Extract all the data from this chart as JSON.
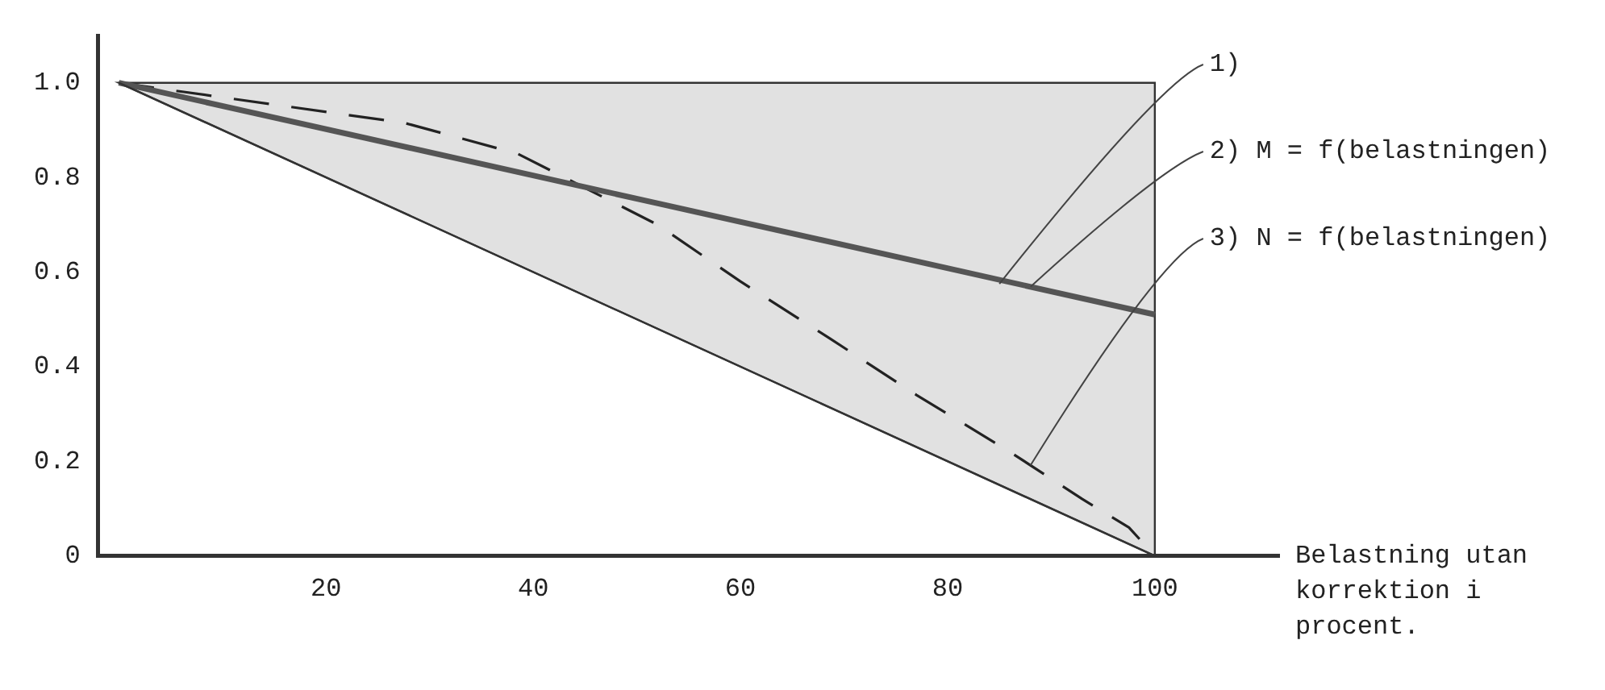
{
  "chart_data": {
    "type": "line",
    "xlabel": "Belastning utan korrektion i procent.",
    "xlim": [
      -2,
      112
    ],
    "xticks": [
      20,
      40,
      60,
      80,
      100
    ],
    "ylim": [
      0,
      1.1
    ],
    "yticks": [
      {
        "value": 0,
        "label": "0"
      },
      {
        "value": 0.2,
        "label": "0.2"
      },
      {
        "value": 0.4,
        "label": "0.4"
      },
      {
        "value": 0.6,
        "label": "0.6"
      },
      {
        "value": 0.8,
        "label": "0.8"
      },
      {
        "value": 1,
        "label": "1.0"
      }
    ],
    "grid": false,
    "legend": false,
    "marker": "none",
    "series": [
      {
        "name": "1)",
        "color": "#333333",
        "x": [
          0,
          100
        ],
        "values": [
          1,
          0
        ],
        "lower": [
          1,
          0
        ],
        "upper": [
          1,
          1
        ],
        "line_style": "solid"
      },
      {
        "name": "2) M = f(belastningen)",
        "color": "#555555",
        "x": [
          0,
          100
        ],
        "values": [
          1,
          0.51
        ],
        "line_style": "solid"
      },
      {
        "name": "3) N = f(belastningen)",
        "color": "#222222",
        "x": [
          0,
          27.6,
          38.5,
          52,
          60,
          68.6,
          77,
          86,
          93,
          97.5,
          100
        ],
        "values": [
          1,
          0.915,
          0.85,
          0.7,
          0.58,
          0.46,
          0.34,
          0.22,
          0.12,
          0.06,
          0
        ],
        "line_style": "dashed"
      }
    ]
  }
}
